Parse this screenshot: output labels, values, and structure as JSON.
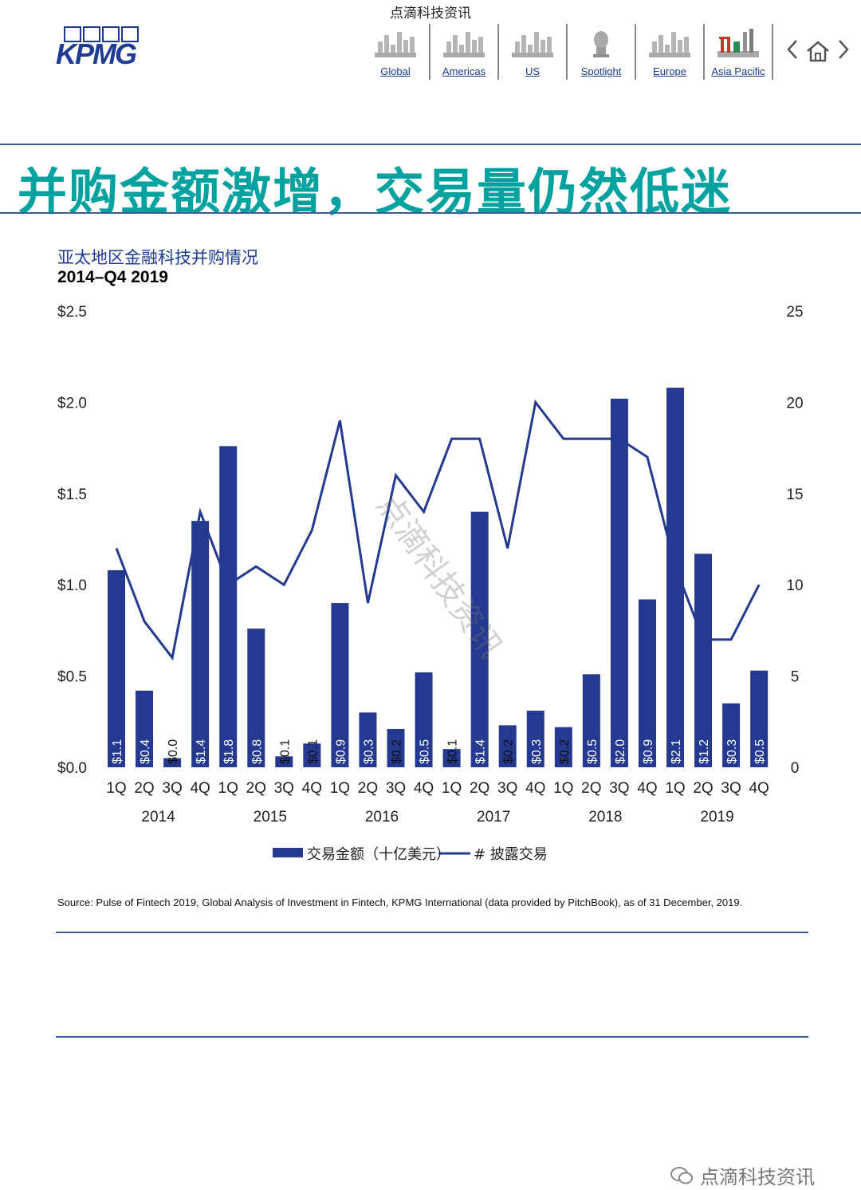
{
  "header": {
    "watermark": "点滴科技资讯",
    "logo_text": "KPMG",
    "nav": [
      {
        "label": "Global",
        "icon": "global-skyline-icon"
      },
      {
        "label": "Americas",
        "icon": "americas-skyline-icon"
      },
      {
        "label": "US",
        "icon": "us-skyline-icon"
      },
      {
        "label": "Spotlight",
        "icon": "spotlight-icon"
      },
      {
        "label": "Europe",
        "icon": "europe-skyline-icon"
      },
      {
        "label": "Asia Pacific",
        "icon": "asia-pacific-skyline-icon"
      }
    ]
  },
  "page": {
    "title": "并购金额激增，交易量仍然低迷",
    "chart_title": "亚太地区金融科技并购情况",
    "chart_subtitle": "2014–Q4 2019",
    "source": "Source: Pulse of Fintech 2019, Global Analysis of Investment in Fintech, KPMG International (data provided by PitchBook), as of 31 December, 2019.",
    "watermark_bottom": "点滴科技资讯",
    "watermark_diagonal": "点滴科技资讯"
  },
  "colors": {
    "bar": "#24398f",
    "line": "#24398f",
    "title": "#00a2a0",
    "rule": "#3d5a9b"
  },
  "chart_data": {
    "type": "bar",
    "title": "亚太地区金融科技并购情况",
    "subtitle": "2014–Q4 2019",
    "categories": [
      "1Q",
      "2Q",
      "3Q",
      "4Q",
      "1Q",
      "2Q",
      "3Q",
      "4Q",
      "1Q",
      "2Q",
      "3Q",
      "4Q",
      "1Q",
      "2Q",
      "3Q",
      "4Q",
      "1Q",
      "2Q",
      "3Q",
      "4Q",
      "1Q",
      "2Q",
      "3Q",
      "4Q"
    ],
    "years": [
      "2014",
      "2015",
      "2016",
      "2017",
      "2018",
      "2019"
    ],
    "series": [
      {
        "name": "交易金额（十亿美元）",
        "type": "bar",
        "axis": "left",
        "values": [
          1.08,
          0.42,
          0.05,
          1.35,
          1.76,
          0.76,
          0.06,
          0.13,
          0.9,
          0.3,
          0.21,
          0.52,
          0.1,
          1.4,
          0.23,
          0.31,
          0.22,
          0.51,
          2.02,
          0.92,
          2.08,
          1.17,
          0.35,
          0.53
        ],
        "labels": [
          "$1.1",
          "$0.4",
          "$0.0",
          "$1.4",
          "$1.8",
          "$0.8",
          "$0.1",
          "$0.1",
          "$0.9",
          "$0.3",
          "$0.2",
          "$0.5",
          "$0.1",
          "$1.4",
          "$0.2",
          "$0.3",
          "$0.2",
          "$0.5",
          "$2.0",
          "$0.9",
          "$2.1",
          "$1.2",
          "$0.3",
          "$0.5"
        ]
      },
      {
        "name": "# 披露交易",
        "type": "line",
        "axis": "right",
        "values": [
          12,
          8,
          6,
          14,
          10,
          11,
          10,
          13,
          19,
          9,
          16,
          14,
          18,
          18,
          12,
          20,
          18,
          18,
          18,
          17,
          11,
          7,
          7,
          10
        ]
      }
    ],
    "left_axis": {
      "min": 0,
      "max": 2.5,
      "ticks": [
        "$0.0",
        "$0.5",
        "$1.0",
        "$1.5",
        "$2.0",
        "$2.5"
      ]
    },
    "right_axis": {
      "min": 0,
      "max": 25,
      "ticks": [
        "0",
        "5",
        "10",
        "15",
        "20",
        "25"
      ]
    },
    "legend_position": "bottom"
  }
}
